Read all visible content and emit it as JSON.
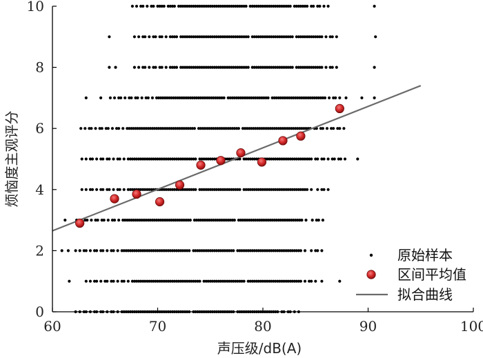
{
  "chart_data": {
    "type": "scatter",
    "xlabel": "声压级/dB(A)",
    "ylabel": "烦恼度主观评分",
    "xlim": [
      60,
      100
    ],
    "ylim": [
      0,
      10
    ],
    "x_ticks": [
      "60",
      "70",
      "80",
      "90",
      "100"
    ],
    "y_ticks": [
      "0",
      "2",
      "4",
      "6",
      "8",
      "10"
    ],
    "grid": false,
    "legend_position": "bottom-right",
    "series": [
      {
        "name": "原始样本",
        "kind": "points",
        "color": "#000000",
        "rows": [
          {
            "y": 10,
            "x_ranges": [
              [
                67.6,
                86.3
              ]
            ],
            "extra_x": [
              90.6
            ]
          },
          {
            "y": 9,
            "x_ranges": [
              [
                67.8,
                87.3
              ]
            ],
            "extra_x": [
              65.4,
              90.7
            ]
          },
          {
            "y": 8,
            "x_ranges": [
              [
                67.8,
                87.5
              ]
            ],
            "extra_x": [
              65.4,
              66.0,
              90.6
            ]
          },
          {
            "y": 7,
            "x_ranges": [
              [
                65.5,
                87.9
              ]
            ],
            "extra_x": [
              63.2,
              64.6,
              89.4,
              90.6
            ]
          },
          {
            "y": 6,
            "x_ranges": [
              [
                62.7,
                87.8
              ]
            ],
            "extra_x": []
          },
          {
            "y": 5,
            "x_ranges": [
              [
                62.8,
                87.8
              ]
            ],
            "extra_x": [
              89.0
            ]
          },
          {
            "y": 4,
            "x_ranges": [
              [
                62.8,
                86.2
              ]
            ],
            "extra_x": []
          },
          {
            "y": 3,
            "x_ranges": [
              [
                62.3,
                85.8
              ]
            ],
            "extra_x": [
              61.2
            ]
          },
          {
            "y": 2,
            "x_ranges": [
              [
                62.2,
                85.9
              ]
            ],
            "extra_x": [
              60.9,
              61.5
            ]
          },
          {
            "y": 1,
            "x_ranges": [
              [
                63.2,
                85.8
              ]
            ],
            "extra_x": [
              61.6,
              87.3
            ]
          },
          {
            "y": 0,
            "x_ranges": [
              [
                62.2,
                83.5
              ]
            ],
            "extra_x": []
          }
        ]
      },
      {
        "name": "区间平均值",
        "kind": "markers",
        "color": "#d62b2b",
        "x": [
          62.6,
          65.9,
          68.0,
          70.2,
          72.1,
          74.1,
          76.0,
          77.9,
          79.9,
          81.9,
          83.6,
          87.3
        ],
        "y": [
          2.9,
          3.7,
          3.85,
          3.6,
          4.15,
          4.8,
          4.95,
          5.2,
          4.9,
          5.6,
          5.75,
          6.65
        ]
      },
      {
        "name": "拟合曲线",
        "kind": "line",
        "color": "#6a6a6a",
        "x": [
          60,
          95
        ],
        "y": [
          2.65,
          7.4
        ]
      }
    ]
  }
}
